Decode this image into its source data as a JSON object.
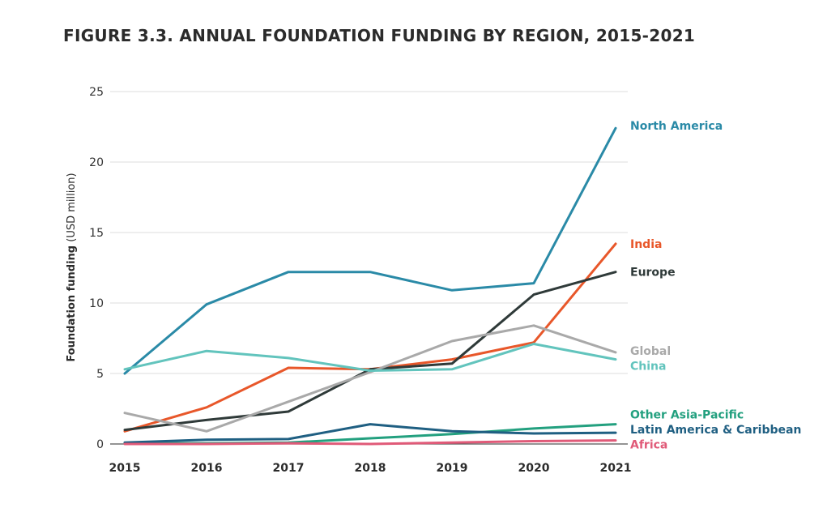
{
  "chart_data": {
    "type": "line",
    "title": "FIGURE 3.3.  ANNUAL FOUNDATION FUNDING BY REGION, 2015-2021",
    "ylabel_bold": "Foundation funding",
    "ylabel_unit": " (USD million)",
    "x": [
      "2015",
      "2016",
      "2017",
      "2018",
      "2019",
      "2020",
      "2021"
    ],
    "ylim": [
      0,
      25
    ],
    "yticks": [
      "0",
      "5",
      "10",
      "15",
      "20",
      "25"
    ],
    "grid": true,
    "legend": "direct labels at line ends (right)",
    "series": [
      {
        "name": "North America",
        "color": "#2a8aa7",
        "values": [
          5.0,
          9.9,
          12.2,
          12.2,
          10.9,
          11.4,
          22.4
        ]
      },
      {
        "name": "India",
        "color": "#e8572a",
        "values": [
          0.9,
          2.6,
          5.4,
          5.3,
          6.0,
          7.2,
          14.2
        ]
      },
      {
        "name": "Europe",
        "color": "#2f3a39",
        "values": [
          1.0,
          1.7,
          2.3,
          5.3,
          5.7,
          10.6,
          12.2
        ]
      },
      {
        "name": "Global",
        "color": "#a9a9a9",
        "values": [
          2.2,
          0.9,
          3.0,
          5.1,
          7.3,
          8.4,
          6.5
        ]
      },
      {
        "name": "China",
        "color": "#62c4bd",
        "values": [
          5.3,
          6.6,
          6.1,
          5.2,
          5.3,
          7.1,
          6.0
        ]
      },
      {
        "name": "Other Asia-Pacific",
        "color": "#23a07f",
        "values": [
          0.05,
          0.05,
          0.1,
          0.4,
          0.7,
          1.1,
          1.4
        ]
      },
      {
        "name": "Latin America & Caribbean",
        "color": "#1f5f82",
        "values": [
          0.1,
          0.3,
          0.35,
          1.4,
          0.9,
          0.75,
          0.8
        ]
      },
      {
        "name": "Africa",
        "color": "#e05a78",
        "values": [
          0.0,
          0.0,
          0.05,
          0.0,
          0.1,
          0.2,
          0.25
        ]
      }
    ]
  }
}
